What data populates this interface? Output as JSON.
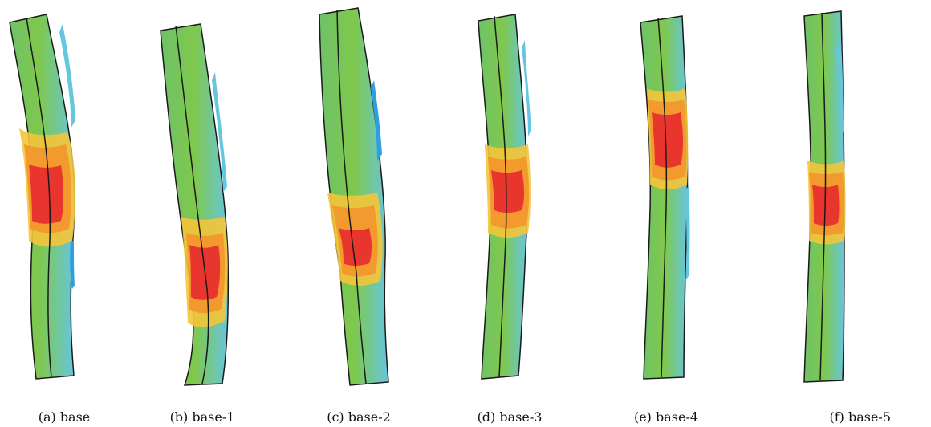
{
  "panels": [
    {
      "id": "a",
      "caption": "(a) base"
    },
    {
      "id": "b",
      "caption": "(b) base-1"
    },
    {
      "id": "c",
      "caption": "(c) base-2"
    },
    {
      "id": "d",
      "caption": "(d) base-3"
    },
    {
      "id": "e",
      "caption": "(e) base-4"
    },
    {
      "id": "f",
      "caption": "(f) base-5"
    }
  ],
  "colors": {
    "outline": "#1a1a1a",
    "cool": "#66c6df",
    "cold": "#2f9fe0",
    "mid": "#7fc84c",
    "light": "#a4d65a",
    "warm": "#f4c43a",
    "orange": "#f29a2d",
    "hot": "#e8352e"
  }
}
